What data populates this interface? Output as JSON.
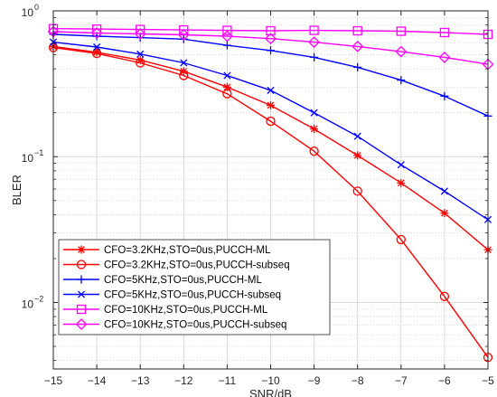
{
  "chart_data": {
    "type": "line",
    "xlabel": "SNR/dB",
    "ylabel": "BLER",
    "xlim": [
      -15,
      -5
    ],
    "ylim": [
      0.0035,
      1
    ],
    "yscale": "log",
    "grid": true,
    "legend_position": "bottom-left",
    "x_ticks": [
      -15,
      -14,
      -13,
      -12,
      -11,
      -10,
      -9,
      -8,
      -7,
      -6,
      -5
    ],
    "x_tick_labels": [
      "−15",
      "−14",
      "−13",
      "−12",
      "−11",
      "−10",
      "−9",
      "−8",
      "−7",
      "−6",
      "−5"
    ],
    "y_ticks": [
      0.01,
      0.1,
      1
    ],
    "y_tick_mantissa": [
      "10",
      "10",
      "10"
    ],
    "y_tick_exponents": [
      "−2",
      "−1",
      "0"
    ],
    "x": [
      -15,
      -14,
      -13,
      -12,
      -11,
      -10,
      -9,
      -8,
      -7,
      -6,
      -5
    ],
    "series": [
      {
        "name": "CFO=3.2KHz,STO=0us,PUCCH-ML",
        "color": "#ff0000",
        "marker": "asterisk",
        "values": [
          0.57,
          0.52,
          0.46,
          0.385,
          0.3,
          0.225,
          0.155,
          0.102,
          0.066,
          0.041,
          0.023
        ]
      },
      {
        "name": "CFO=3.2KHz,STO=0us,PUCCH-subseq",
        "color": "#ff0000",
        "marker": "circle",
        "values": [
          0.56,
          0.51,
          0.44,
          0.36,
          0.27,
          0.175,
          0.109,
          0.058,
          0.027,
          0.011,
          0.0042
        ]
      },
      {
        "name": "CFO=5KHz,STO=0us,PUCCH-ML",
        "color": "#0000ff",
        "marker": "plus",
        "values": [
          0.69,
          0.67,
          0.655,
          0.64,
          0.58,
          0.535,
          0.48,
          0.41,
          0.335,
          0.26,
          0.19
        ]
      },
      {
        "name": "CFO=5KHz,STO=0us,PUCCH-subseq",
        "color": "#0000ff",
        "marker": "x",
        "values": [
          0.61,
          0.565,
          0.505,
          0.44,
          0.36,
          0.285,
          0.2,
          0.138,
          0.088,
          0.058,
          0.037
        ]
      },
      {
        "name": "CFO=10KHz,STO=0us,PUCCH-ML",
        "color": "#ff00ff",
        "marker": "square",
        "values": [
          0.755,
          0.75,
          0.745,
          0.74,
          0.735,
          0.73,
          0.735,
          0.73,
          0.725,
          0.71,
          0.69
        ]
      },
      {
        "name": "CFO=10KHz,STO=0us,PUCCH-subseq",
        "color": "#ff00ff",
        "marker": "diamond",
        "values": [
          0.72,
          0.705,
          0.695,
          0.685,
          0.67,
          0.645,
          0.61,
          0.57,
          0.525,
          0.48,
          0.43
        ]
      }
    ]
  }
}
